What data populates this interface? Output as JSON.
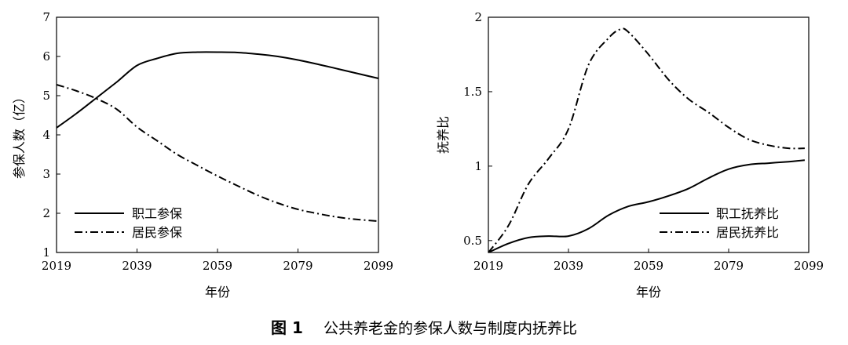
{
  "caption": {
    "figure_number": "图 1",
    "text": "公共养老金的参保人数与制度内抚养比"
  },
  "chart_data": [
    {
      "type": "line",
      "title": "",
      "xlabel": "年份",
      "ylabel": "参保人数（亿）",
      "xlim": [
        2019,
        2099
      ],
      "ylim": [
        1,
        7
      ],
      "xticks": [
        2019,
        2039,
        2059,
        2079,
        2099
      ],
      "yticks": [
        1,
        2,
        3,
        4,
        5,
        6,
        7
      ],
      "grid": false,
      "legend_position": "bottom-left",
      "series": [
        {
          "name": "职工参保",
          "style": "solid",
          "x": [
            2019,
            2024,
            2029,
            2034,
            2039,
            2044,
            2049,
            2054,
            2059,
            2064,
            2069,
            2074,
            2079,
            2084,
            2089,
            2094,
            2099
          ],
          "values": [
            4.18,
            4.55,
            4.95,
            5.35,
            5.77,
            5.95,
            6.08,
            6.11,
            6.11,
            6.1,
            6.06,
            6.0,
            5.91,
            5.8,
            5.68,
            5.56,
            5.44
          ]
        },
        {
          "name": "居民参保",
          "style": "dashdot",
          "x": [
            2019,
            2024,
            2029,
            2034,
            2039,
            2044,
            2049,
            2054,
            2059,
            2064,
            2069,
            2074,
            2079,
            2084,
            2089,
            2094,
            2099
          ],
          "values": [
            5.28,
            5.12,
            4.92,
            4.65,
            4.2,
            3.85,
            3.5,
            3.22,
            2.95,
            2.7,
            2.46,
            2.26,
            2.1,
            1.99,
            1.9,
            1.84,
            1.8
          ]
        }
      ]
    },
    {
      "type": "line",
      "title": "",
      "xlabel": "年份",
      "ylabel": "抚养比",
      "xlim": [
        2019,
        2099
      ],
      "ylim": [
        0.42,
        2.0
      ],
      "xticks": [
        2019,
        2039,
        2059,
        2079,
        2099
      ],
      "yticks": [
        0.5,
        1,
        1.5,
        2
      ],
      "grid": false,
      "legend_position": "bottom-right",
      "series": [
        {
          "name": "职工抚养比",
          "style": "solid",
          "x": [
            2019,
            2024,
            2029,
            2034,
            2039,
            2044,
            2049,
            2054,
            2059,
            2064,
            2069,
            2074,
            2079,
            2084,
            2089,
            2094,
            2098
          ],
          "values": [
            0.42,
            0.48,
            0.52,
            0.53,
            0.53,
            0.58,
            0.67,
            0.73,
            0.76,
            0.8,
            0.85,
            0.92,
            0.98,
            1.01,
            1.02,
            1.03,
            1.04
          ]
        },
        {
          "name": "居民抚养比",
          "style": "dashdot",
          "x": [
            2019,
            2024,
            2029,
            2034,
            2039,
            2044,
            2049,
            2052,
            2054,
            2059,
            2064,
            2069,
            2074,
            2079,
            2084,
            2089,
            2094,
            2098
          ],
          "values": [
            0.42,
            0.6,
            0.88,
            1.05,
            1.25,
            1.68,
            1.86,
            1.92,
            1.9,
            1.75,
            1.58,
            1.45,
            1.36,
            1.26,
            1.18,
            1.14,
            1.12,
            1.12
          ]
        }
      ]
    }
  ]
}
